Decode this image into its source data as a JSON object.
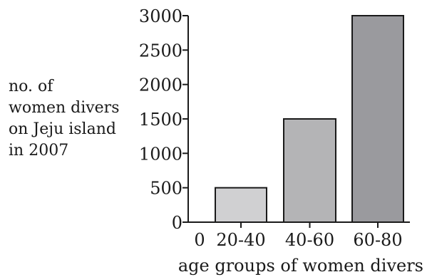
{
  "chart_data": {
    "type": "bar",
    "categories": [
      "20-40",
      "40-60",
      "60-80"
    ],
    "values": [
      500,
      1500,
      3000
    ],
    "bar_colors": [
      "#d0d0d2",
      "#b4b4b6",
      "#9a9a9e"
    ],
    "title": "",
    "ylabel_lines": [
      "no. of",
      "women divers",
      "on Jeju island",
      "in 2007"
    ],
    "xlabel": "age groups of women divers",
    "yticks": [
      0,
      500,
      1000,
      1500,
      2000,
      2500,
      3000
    ],
    "ytick_labels": [
      "0",
      "500",
      "1000",
      "1500",
      "2000",
      "2500",
      "3000"
    ],
    "x_origin_label": "0",
    "ylim": [
      0,
      3000
    ],
    "grid": false
  }
}
